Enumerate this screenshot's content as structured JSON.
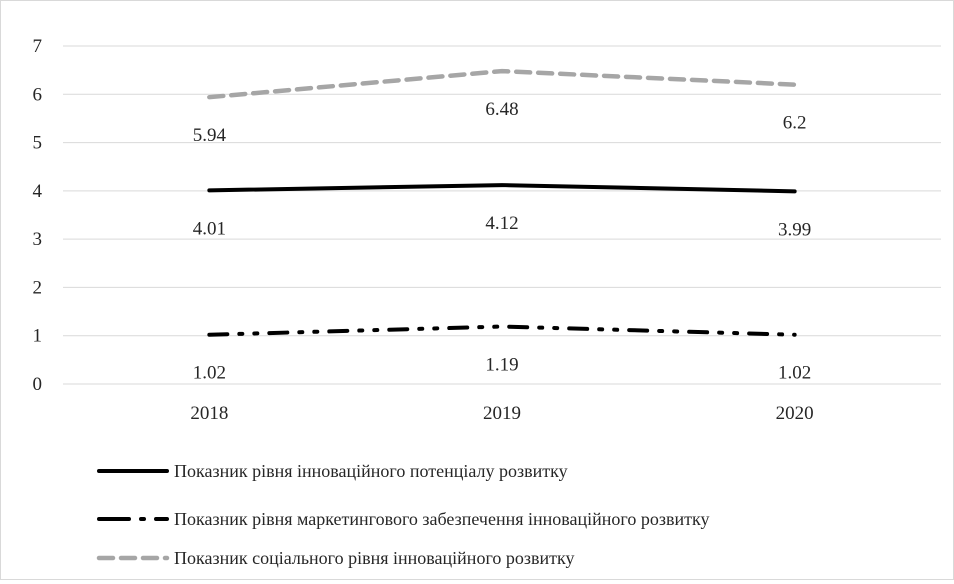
{
  "chart_data": {
    "type": "line",
    "categories": [
      "2018",
      "2019",
      "2020"
    ],
    "ylim": [
      0,
      7
    ],
    "yticks": [
      "0",
      "1",
      "2",
      "3",
      "4",
      "5",
      "6",
      "7"
    ],
    "grid": true,
    "legend_position": "bottom",
    "series": [
      {
        "name": "Показник рівня інноваційного потенціалу розвитку",
        "values": [
          4.01,
          4.12,
          3.99
        ],
        "labels": [
          "4.01",
          "4.12",
          "3.99"
        ],
        "color": "#000000",
        "dash": "solid"
      },
      {
        "name": "Показник рівня маркетингового забезпечення інноваційного розвитку",
        "values": [
          1.02,
          1.19,
          1.02
        ],
        "labels": [
          "1.02",
          "1.19",
          "1.02"
        ],
        "color": "#000000",
        "dash": "dash-dot-dot"
      },
      {
        "name": "Показник соціального рівня інноваційного розвитку",
        "values": [
          5.94,
          6.48,
          6.2
        ],
        "labels": [
          "5.94",
          "6.48",
          "6.2"
        ],
        "color": "#a6a6a6",
        "dash": "dashed"
      }
    ]
  }
}
